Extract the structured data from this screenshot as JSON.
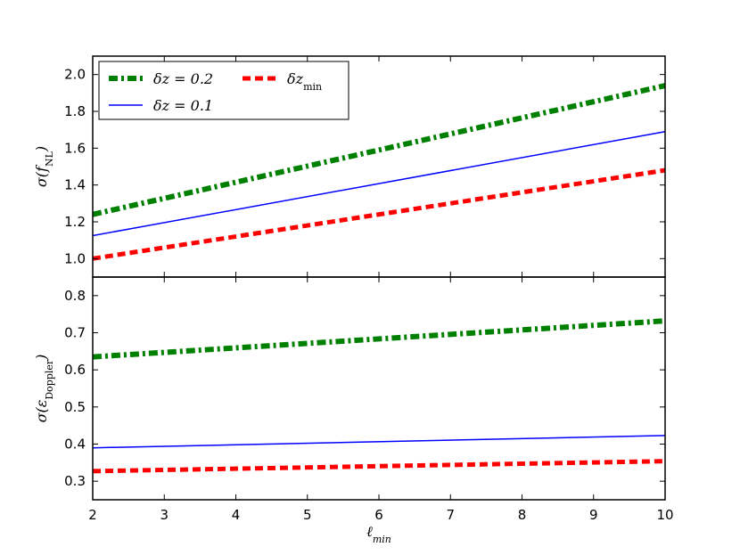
{
  "chart_data": [
    {
      "type": "line",
      "title": "",
      "xlabel": "",
      "ylabel": "σ(f_NL)",
      "xlim": [
        2,
        10
      ],
      "ylim": [
        0.9,
        2.1
      ],
      "yticks": [
        "1.0",
        "1.2",
        "1.4",
        "1.6",
        "1.8",
        "2.0"
      ],
      "grid": false,
      "legend_position": "top-left",
      "series": [
        {
          "name": "δz = 0.2",
          "x": [
            2,
            10
          ],
          "values": [
            1.24,
            1.94
          ],
          "color": "#008000",
          "style": "dashdot-thick"
        },
        {
          "name": "δz = 0.1",
          "x": [
            2,
            10
          ],
          "values": [
            1.125,
            1.69
          ],
          "color": "#0000ff",
          "style": "solid"
        },
        {
          "name": "δz_min",
          "x": [
            2,
            10
          ],
          "values": [
            1.0,
            1.48
          ],
          "color": "#ff0000",
          "style": "dashed"
        }
      ]
    },
    {
      "type": "line",
      "title": "",
      "xlabel": "ℓ_min",
      "ylabel": "σ(ε_Doppler)",
      "xlim": [
        2,
        10
      ],
      "ylim": [
        0.25,
        0.85
      ],
      "xticks": [
        "2",
        "3",
        "4",
        "5",
        "6",
        "7",
        "8",
        "9",
        "10"
      ],
      "yticks": [
        "0.3",
        "0.4",
        "0.5",
        "0.6",
        "0.7",
        "0.8"
      ],
      "grid": false,
      "series": [
        {
          "name": "δz = 0.2",
          "x": [
            2,
            10
          ],
          "values": [
            0.635,
            0.732
          ],
          "color": "#008000",
          "style": "dashdot-thick"
        },
        {
          "name": "δz = 0.1",
          "x": [
            2,
            10
          ],
          "values": [
            0.39,
            0.423
          ],
          "color": "#0000ff",
          "style": "solid"
        },
        {
          "name": "δz_min",
          "x": [
            2,
            10
          ],
          "values": [
            0.327,
            0.354
          ],
          "color": "#ff0000",
          "style": "dashed"
        }
      ]
    }
  ]
}
